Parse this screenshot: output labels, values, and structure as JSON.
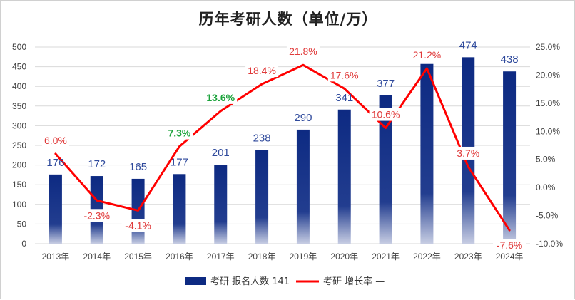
{
  "colors": {
    "bar_top": "#0d2a82",
    "bar_bottom": "#c7cde3",
    "line": "#ff0000",
    "bar_label": "#2f4a9c",
    "rate_label": "#e03a3a",
    "rate_highlight": "#1aa23a",
    "grid": "#d9d9d9"
  },
  "chart_data": {
    "type": "bar+line",
    "title": "历年考研人数（单位/万）",
    "categories": [
      "2013年",
      "2014年",
      "2015年",
      "2016年",
      "2017年",
      "2018年",
      "2019年",
      "2020年",
      "2021年",
      "2022年",
      "2023年",
      "2024年"
    ],
    "series": [
      {
        "name": "考研 报名人数 141",
        "type": "bar",
        "axis": "left",
        "values": [
          176,
          172,
          165,
          177,
          201,
          238,
          290,
          341,
          377,
          457,
          474,
          438
        ],
        "labels": [
          "176",
          "172",
          "165",
          "177",
          "201",
          "238",
          "290",
          "341",
          "377",
          "457",
          "474",
          "438"
        ]
      },
      {
        "name": "考研 增长率 —",
        "type": "line",
        "axis": "right",
        "values": [
          6.0,
          -2.3,
          -4.1,
          7.3,
          13.6,
          18.4,
          21.8,
          17.6,
          10.6,
          21.2,
          3.7,
          -7.6
        ],
        "labels": [
          "6.0%",
          "-2.3%",
          "-4.1%",
          "7.3%",
          "13.6%",
          "18.4%",
          "21.8%",
          "17.6%",
          "10.6%",
          "21.2%",
          "3.7%",
          "-7.6%"
        ],
        "highlighted": [
          3,
          4
        ]
      }
    ],
    "left_axis": {
      "ylim": [
        0,
        500
      ],
      "ticks": [
        0,
        50,
        100,
        150,
        200,
        250,
        300,
        350,
        400,
        450,
        500
      ],
      "tick_labels": [
        "0",
        "50",
        "100",
        "150",
        "200",
        "250",
        "300",
        "350",
        "400",
        "450",
        "500"
      ]
    },
    "right_axis": {
      "ylim": [
        -10,
        25
      ],
      "ticks": [
        -10,
        -5,
        0,
        5,
        10,
        15,
        20,
        25
      ],
      "tick_labels": [
        "-10.0%",
        "-5.0%",
        "0.0%",
        "5.0%",
        "10.0%",
        "15.0%",
        "20.0%",
        "25.0%"
      ]
    },
    "grid": true,
    "legend": "bottom-center"
  }
}
